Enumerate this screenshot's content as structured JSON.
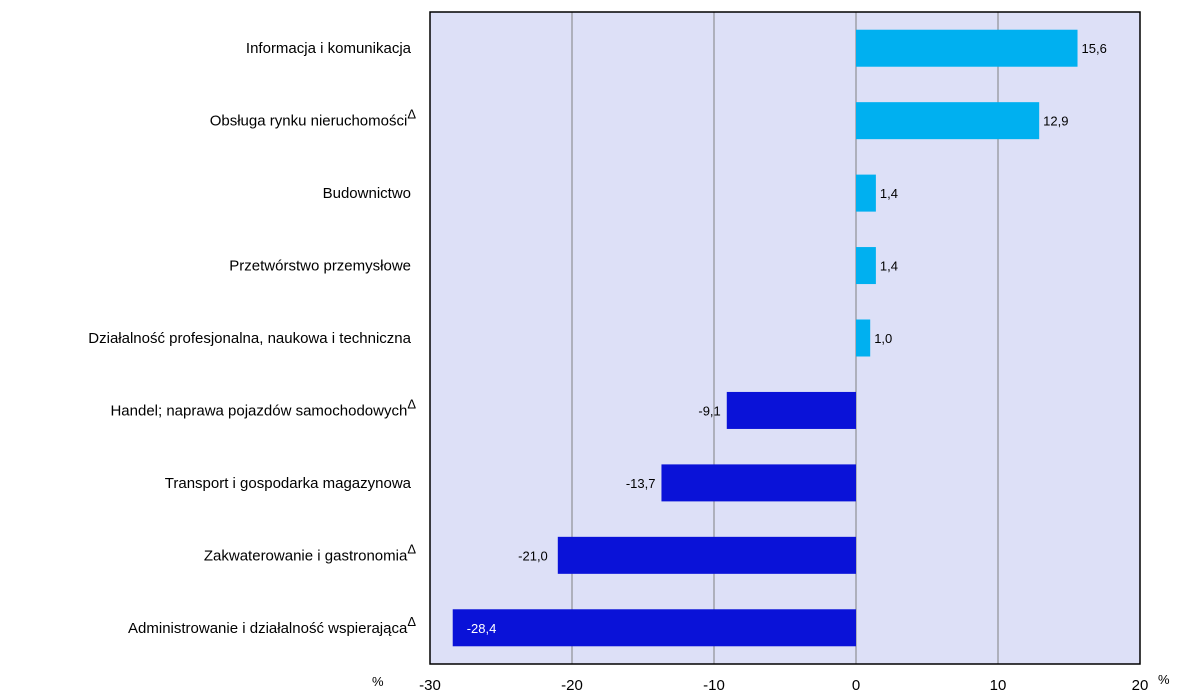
{
  "chart_data": {
    "type": "bar",
    "orientation": "horizontal",
    "title": "",
    "xlabel": "%",
    "xlabel_right": "%",
    "ylabel": "",
    "xlim": [
      -30,
      20
    ],
    "x_ticks": [
      -30,
      -20,
      -10,
      0,
      10,
      20
    ],
    "tick_labels": [
      "-30",
      "-20",
      "-10",
      "0",
      "10",
      "20"
    ],
    "grid": "vertical",
    "categories": [
      "Informacja i komunikacja",
      "Obsługa rynku nieruchomości",
      "Budownictwo",
      "Przetwórstwo przemysłowe",
      "Działalność profesjonalna, naukowa i techniczna",
      "Handel; naprawa pojazdów samochodowych",
      "Transport i gospodarka magazynowa",
      "Zakwaterowanie i gastronomia",
      "Administrowanie i działalność wspierająca"
    ],
    "markers": [
      "",
      "Δ",
      "",
      "",
      "",
      "Δ",
      "",
      "Δ",
      "Δ"
    ],
    "values": [
      15.6,
      12.9,
      1.4,
      1.4,
      1.0,
      -9.1,
      -13.7,
      -21.0,
      -28.4
    ],
    "value_labels": [
      "15,6",
      "12,9",
      "1,4",
      "1,4",
      "1,0",
      "-9,1",
      "-13,7",
      "-21,0",
      "-28,4"
    ],
    "colors": {
      "positive": "#00b0f0",
      "negative": "#0a12d8",
      "plot_background": "#dde0f7",
      "grid": "#808080",
      "frame": "#000000"
    }
  }
}
